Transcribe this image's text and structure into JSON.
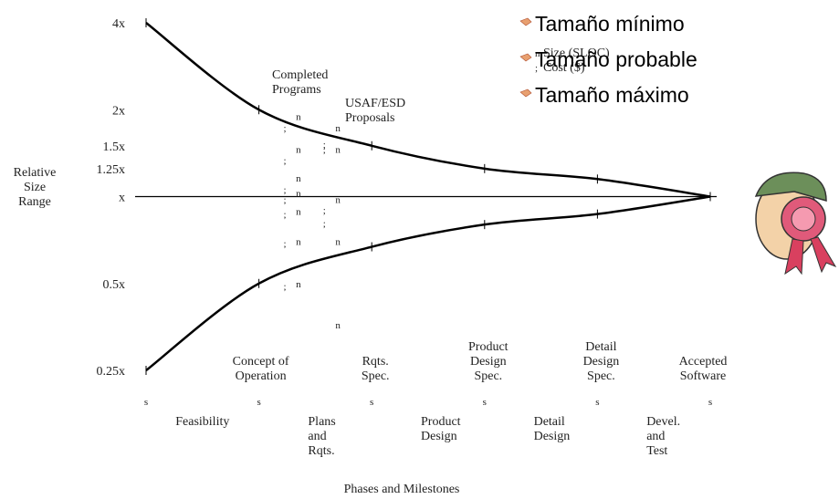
{
  "chart_data": {
    "type": "line",
    "y_label": [
      "Relative",
      "Size",
      "Range"
    ],
    "x_label": "Phases and Milestones",
    "log_y": true,
    "x": [
      0,
      1,
      2,
      3,
      4,
      5
    ],
    "xlim": [
      0,
      5
    ],
    "ylim": [
      0.25,
      4
    ],
    "yticks": [
      {
        "value": 4,
        "label": "4x"
      },
      {
        "value": 2,
        "label": "2x"
      },
      {
        "value": 1.5,
        "label": "1.5x"
      },
      {
        "value": 1.25,
        "label": "1.25x"
      },
      {
        "value": 1,
        "label": "x"
      },
      {
        "value": 0.5,
        "label": "0.5x"
      },
      {
        "value": 0.25,
        "label": "0.25x"
      }
    ],
    "series": [
      {
        "color": "#000000",
        "values": [
          4,
          2,
          1.5,
          1.25,
          1.15,
          1
        ]
      },
      {
        "color": "#000000",
        "values": [
          0.25,
          0.5,
          0.67,
          0.8,
          0.87,
          1
        ]
      }
    ],
    "milestone_marker": "s",
    "milestones": [
      null,
      [
        "Concept of",
        "Operation"
      ],
      [
        "Rqts.",
        "Spec."
      ],
      [
        "Product",
        "Design",
        "Spec."
      ],
      [
        "Detail",
        "Design",
        "Spec."
      ],
      [
        "Accepted",
        "Software"
      ]
    ],
    "phases": [
      [
        "Feasibility"
      ],
      [
        "Plans",
        "and",
        "Rqts."
      ],
      [
        "Product",
        "Design"
      ],
      [
        "Detail",
        "Design"
      ],
      [
        "Devel.",
        "and",
        "Test"
      ]
    ],
    "legend": [
      {
        "marker": "n",
        "label": "Size (SLOC)"
      },
      {
        "marker": ";",
        "label": "Cost ($)"
      }
    ],
    "point_groups": [
      {
        "label": [
          "Completed",
          "Programs"
        ],
        "size": {
          "x": [
            1.35,
            1.35,
            1.35,
            1.35,
            1.35,
            1.35,
            1.35
          ],
          "values": [
            1.9,
            1.46,
            1.16,
            1.03,
            0.89,
            0.7,
            0.5
          ]
        },
        "cost": {
          "x": [
            1.23,
            1.23,
            1.23,
            1.23,
            1.23,
            1.23,
            1.23
          ],
          "values": [
            1.73,
            1.34,
            1.06,
            0.98,
            0.87,
            0.69,
            0.49
          ]
        }
      },
      {
        "label": [
          "USAF/ESD",
          "Proposals"
        ],
        "size": {
          "x": [
            1.7,
            1.7,
            1.7,
            1.7,
            1.7
          ],
          "values": [
            1.73,
            1.46,
            0.98,
            0.7,
            0.36
          ]
        },
        "cost": {
          "x": [
            1.58,
            1.58,
            1.58,
            1.58
          ],
          "values": [
            1.52,
            1.46,
            0.9,
            0.81
          ]
        }
      }
    ]
  },
  "bullets": [
    "Tamaño mínimo",
    "Tamaño probable",
    "Tamaño máximo"
  ]
}
